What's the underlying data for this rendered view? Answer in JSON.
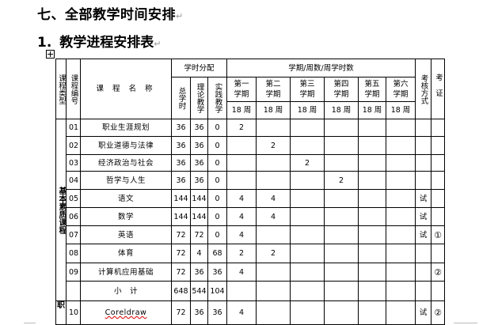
{
  "heading": "七、全部教学时间安排",
  "subheading_num": "1.",
  "subheading": "教学进程安排表",
  "header": {
    "type": "课程类型",
    "code": "课程编号",
    "name": "课 程 名 称",
    "hours_group": "学时分配",
    "total": "总学时",
    "theory": "理论教学",
    "practice": "实践教学",
    "term_group": "学期/周数/周学时数",
    "terms": [
      "第一学期",
      "第二学期",
      "第三学期",
      "第四学期",
      "第五学期",
      "第六学期"
    ],
    "weeks": [
      "18 周",
      "18 周",
      "18 周",
      "18 周",
      "18 周",
      "18 周"
    ],
    "exam": "考核方式",
    "cert": "考证"
  },
  "groups": {
    "basic": "基本素质课程",
    "vocational": "职"
  },
  "rows": [
    {
      "code": "01",
      "name": "职业生涯规划",
      "total": "36",
      "theory": "36",
      "practice": "0",
      "t": [
        "2",
        "",
        "",
        "",
        "",
        ""
      ],
      "exam": "",
      "cert": ""
    },
    {
      "code": "02",
      "name": "职业道德与法律",
      "total": "36",
      "theory": "36",
      "practice": "0",
      "t": [
        "",
        "2",
        "",
        "",
        "",
        ""
      ],
      "exam": "",
      "cert": ""
    },
    {
      "code": "03",
      "name": "经济政治与社会",
      "total": "36",
      "theory": "36",
      "practice": "0",
      "t": [
        "",
        "",
        "2",
        "",
        "",
        ""
      ],
      "exam": "",
      "cert": ""
    },
    {
      "code": "04",
      "name": "哲学与人生",
      "total": "36",
      "theory": "36",
      "practice": "0",
      "t": [
        "",
        "",
        "",
        "2",
        "",
        ""
      ],
      "exam": "",
      "cert": ""
    },
    {
      "code": "05",
      "name": "语文",
      "total": "144",
      "theory": "144",
      "practice": "0",
      "t": [
        "4",
        "4",
        "",
        "",
        "",
        ""
      ],
      "exam": "试",
      "cert": ""
    },
    {
      "code": "06",
      "name": "数学",
      "total": "144",
      "theory": "144",
      "practice": "0",
      "t": [
        "4",
        "4",
        "",
        "",
        "",
        ""
      ],
      "exam": "试",
      "cert": ""
    },
    {
      "code": "07",
      "name": "英语",
      "total": "72",
      "theory": "72",
      "practice": "0",
      "t": [
        "4",
        "",
        "",
        "",
        "",
        ""
      ],
      "exam": "试",
      "cert": "①"
    },
    {
      "code": "08",
      "name": "体育",
      "total": "72",
      "theory": "4",
      "practice": "68",
      "t": [
        "2",
        "2",
        "",
        "",
        "",
        ""
      ],
      "exam": "",
      "cert": ""
    },
    {
      "code": "09",
      "name": "计算机应用基础",
      "total": "72",
      "theory": "36",
      "practice": "36",
      "t": [
        "4",
        "",
        "",
        "",
        "",
        ""
      ],
      "exam": "",
      "cert": "②"
    },
    {
      "code": "",
      "name": "小　计",
      "total": "648",
      "theory": "544",
      "practice": "104",
      "t": [
        "",
        "",
        "",
        "",
        "",
        ""
      ],
      "exam": "",
      "cert": ""
    },
    {
      "code": "10",
      "name": "Coreldraw",
      "total": "72",
      "theory": "36",
      "practice": "36",
      "t": [
        "4",
        "",
        "",
        "",
        "",
        ""
      ],
      "exam": "试",
      "cert": "②"
    }
  ]
}
